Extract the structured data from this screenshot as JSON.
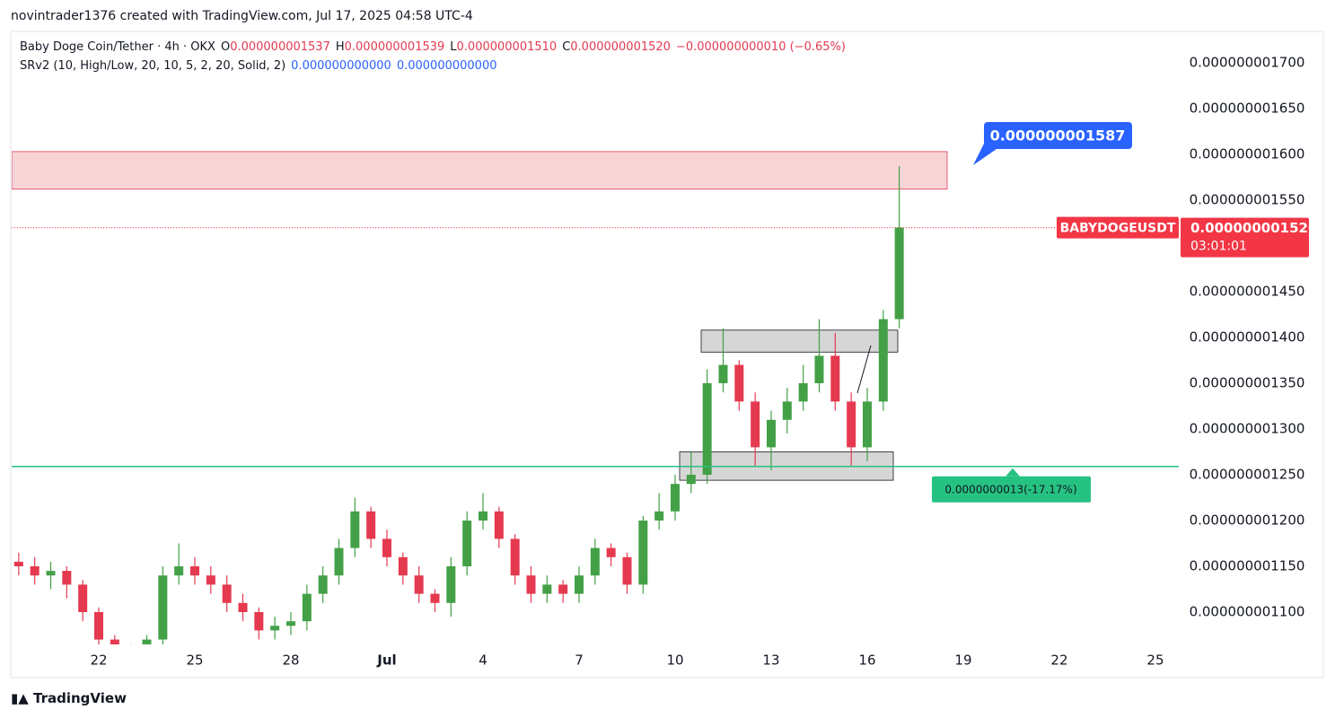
{
  "attribution": "novintrader1376 created with TradingView.com, Jul 17, 2025 04:58 UTC-4",
  "footer": "TradingView",
  "chart_data": {
    "type": "candlestick",
    "legend": {
      "symbol": "Baby Doge Coin/Tether · 4h · OKX",
      "ohlc": [
        {
          "label": "O",
          "value": "0.000000001537"
        },
        {
          "label": "H",
          "value": "0.000000001539"
        },
        {
          "label": "L",
          "value": "0.000000001510"
        },
        {
          "label": "C",
          "value": "0.000000001520"
        }
      ],
      "change": "−0.000000000010 (−0.65%)",
      "indicator": "SRv2 (10, High/Low, 20, 10, 5, 2, 20, Solid, 2)",
      "indicator_values": [
        "0.000000000000",
        "0.000000000000"
      ]
    },
    "up_color": "#43a047",
    "down_color": "#e53950",
    "x": [
      19.5,
      20,
      20.5,
      21,
      21.5,
      22,
      22.5,
      23,
      23.5,
      24,
      24.5,
      25,
      25.5,
      26,
      26.5,
      27,
      27.5,
      28,
      28.5,
      29,
      29.5,
      30,
      30.5,
      31,
      31.5,
      32,
      32.5,
      33,
      33.5,
      34,
      34.5,
      35,
      35.5,
      36,
      36.5,
      37,
      37.5,
      38,
      38.5,
      39,
      39.5,
      40,
      40.5,
      41,
      41.5,
      42,
      42.5,
      43,
      43.5,
      44,
      44.5,
      45,
      45.5,
      46,
      46.5,
      47
    ],
    "open": [
      1.155e-09,
      1.15e-09,
      1.14e-09,
      1.145e-09,
      1.13e-09,
      1.1e-09,
      1.07e-09,
      1.06e-09,
      1.05e-09,
      1.07e-09,
      1.14e-09,
      1.15e-09,
      1.14e-09,
      1.13e-09,
      1.11e-09,
      1.1e-09,
      1.08e-09,
      1.085e-09,
      1.09e-09,
      1.12e-09,
      1.14e-09,
      1.17e-09,
      1.21e-09,
      1.18e-09,
      1.16e-09,
      1.14e-09,
      1.12e-09,
      1.11e-09,
      1.15e-09,
      1.2e-09,
      1.21e-09,
      1.18e-09,
      1.14e-09,
      1.12e-09,
      1.13e-09,
      1.12e-09,
      1.14e-09,
      1.17e-09,
      1.16e-09,
      1.13e-09,
      1.2e-09,
      1.21e-09,
      1.24e-09,
      1.25e-09,
      1.35e-09,
      1.37e-09,
      1.33e-09,
      1.28e-09,
      1.31e-09,
      1.33e-09,
      1.35e-09,
      1.38e-09,
      1.33e-09,
      1.28e-09,
      1.33e-09,
      1.42e-09
    ],
    "high": [
      1.165e-09,
      1.16e-09,
      1.155e-09,
      1.15e-09,
      1.135e-09,
      1.105e-09,
      1.075e-09,
      1.065e-09,
      1.075e-09,
      1.15e-09,
      1.175e-09,
      1.16e-09,
      1.15e-09,
      1.14e-09,
      1.12e-09,
      1.105e-09,
      1.095e-09,
      1.1e-09,
      1.13e-09,
      1.15e-09,
      1.18e-09,
      1.225e-09,
      1.215e-09,
      1.19e-09,
      1.165e-09,
      1.15e-09,
      1.125e-09,
      1.16e-09,
      1.21e-09,
      1.23e-09,
      1.215e-09,
      1.185e-09,
      1.15e-09,
      1.14e-09,
      1.135e-09,
      1.15e-09,
      1.18e-09,
      1.175e-09,
      1.165e-09,
      1.205e-09,
      1.23e-09,
      1.25e-09,
      1.275e-09,
      1.365e-09,
      1.41e-09,
      1.375e-09,
      1.34e-09,
      1.32e-09,
      1.345e-09,
      1.37e-09,
      1.42e-09,
      1.405e-09,
      1.34e-09,
      1.345e-09,
      1.43e-09,
      1.587e-09
    ],
    "low": [
      1.14e-09,
      1.13e-09,
      1.125e-09,
      1.115e-09,
      1.09e-09,
      1.06e-09,
      1.05e-09,
      1.04e-09,
      1.04e-09,
      1.06e-09,
      1.13e-09,
      1.13e-09,
      1.12e-09,
      1.1e-09,
      1.09e-09,
      1.07e-09,
      1.07e-09,
      1.075e-09,
      1.08e-09,
      1.11e-09,
      1.13e-09,
      1.16e-09,
      1.17e-09,
      1.15e-09,
      1.13e-09,
      1.11e-09,
      1.1e-09,
      1.095e-09,
      1.14e-09,
      1.19e-09,
      1.17e-09,
      1.13e-09,
      1.11e-09,
      1.11e-09,
      1.11e-09,
      1.11e-09,
      1.13e-09,
      1.15e-09,
      1.12e-09,
      1.12e-09,
      1.19e-09,
      1.2e-09,
      1.23e-09,
      1.24e-09,
      1.34e-09,
      1.32e-09,
      1.26e-09,
      1.255e-09,
      1.295e-09,
      1.32e-09,
      1.34e-09,
      1.32e-09,
      1.26e-09,
      1.265e-09,
      1.32e-09,
      1.41e-09
    ],
    "close": [
      1.15e-09,
      1.14e-09,
      1.145e-09,
      1.13e-09,
      1.1e-09,
      1.07e-09,
      1.06e-09,
      1.05e-09,
      1.07e-09,
      1.14e-09,
      1.15e-09,
      1.14e-09,
      1.13e-09,
      1.11e-09,
      1.1e-09,
      1.08e-09,
      1.085e-09,
      1.09e-09,
      1.12e-09,
      1.14e-09,
      1.17e-09,
      1.21e-09,
      1.18e-09,
      1.16e-09,
      1.14e-09,
      1.12e-09,
      1.11e-09,
      1.15e-09,
      1.2e-09,
      1.21e-09,
      1.18e-09,
      1.14e-09,
      1.12e-09,
      1.13e-09,
      1.12e-09,
      1.14e-09,
      1.17e-09,
      1.16e-09,
      1.13e-09,
      1.2e-09,
      1.21e-09,
      1.24e-09,
      1.25e-09,
      1.35e-09,
      1.37e-09,
      1.33e-09,
      1.28e-09,
      1.31e-09,
      1.33e-09,
      1.35e-09,
      1.38e-09,
      1.33e-09,
      1.28e-09,
      1.33e-09,
      1.42e-09,
      1.52e-09
    ],
    "xlim": [
      19.28,
      55.73
    ],
    "xticks": [
      22,
      25,
      28,
      {
        "value": 31,
        "label": "Jul"
      },
      {
        "value": 34,
        "label": "4"
      },
      {
        "value": 37,
        "label": "7"
      },
      {
        "value": 40,
        "label": "10"
      },
      {
        "value": 43,
        "label": "13"
      },
      {
        "value": 46,
        "label": "16"
      },
      {
        "value": 49,
        "label": "19"
      },
      {
        "value": 52,
        "label": "22"
      },
      {
        "value": 55,
        "label": "25"
      }
    ],
    "ylim": [
      1.0647e-09,
      1.7343e-09
    ],
    "yticks": [
      {
        "value": 1.1e-09,
        "label": "0.000000001100"
      },
      {
        "value": 1.15e-09,
        "label": "0.000000001150"
      },
      {
        "value": 1.2e-09,
        "label": "0.000000001200"
      },
      {
        "value": 1.25e-09,
        "label": "0.000000001250"
      },
      {
        "value": 1.3e-09,
        "label": "0.000000001300"
      },
      {
        "value": 1.35e-09,
        "label": "0.000000001350"
      },
      {
        "value": 1.4e-09,
        "label": "0.000000001400"
      },
      {
        "value": 1.45e-09,
        "label": "0.000000001450"
      },
      {
        "value": 1.5e-09,
        "label": "0.000000001500"
      },
      {
        "value": 1.55e-09,
        "label": "0.000000001550"
      },
      {
        "value": 1.6e-09,
        "label": "0.000000001600"
      },
      {
        "value": 1.65e-09,
        "label": "0.000000001650"
      },
      {
        "value": 1.7e-09,
        "label": "0.000000001700"
      }
    ],
    "grid": false,
    "zones": [
      {
        "top": 1.603e-09,
        "bottom": 1.562e-09,
        "color": "#f9d4d6"
      },
      {
        "top": 1.408e-09,
        "bottom": 1.384e-09,
        "color": "#d6d6d6"
      },
      {
        "top": 1.275e-09,
        "bottom": 1.244e-09,
        "color": "#d6d6d6"
      }
    ],
    "support_line": {
      "value": 1.259e-09,
      "color": "#26c281",
      "label": "0.0000000013(-17.17%)"
    },
    "last_price": {
      "value": 1.52e-09,
      "symbol": "BABYDOGEUSDT",
      "label": "0.000000001520",
      "countdown": "03:01:01",
      "color": "#f23645"
    },
    "high_callout": {
      "value": 1.587e-09,
      "label": "0.000000001587"
    }
  }
}
